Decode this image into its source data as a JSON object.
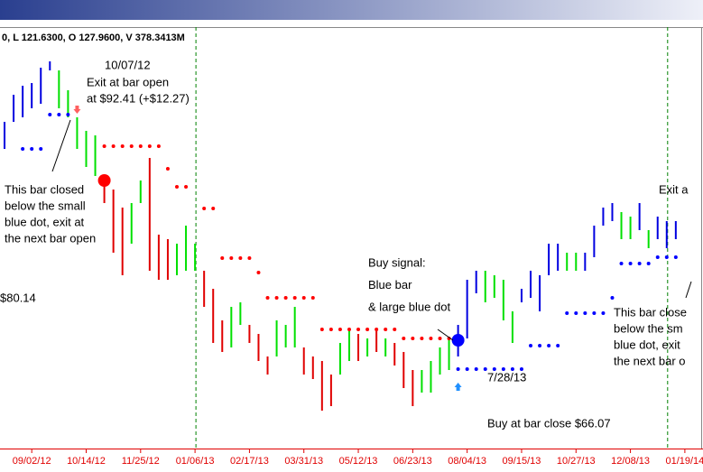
{
  "chart_data": {
    "type": "ohlc",
    "header": "0, L 121.6300, O 127.9600, V 378.3413M",
    "ylim": [
      56.0,
      102.5
    ],
    "xlim": [
      -0.5,
      77
    ],
    "xticks": [
      {
        "value": 3,
        "label": "09/02/12"
      },
      {
        "value": 9,
        "label": "10/14/12"
      },
      {
        "value": 15,
        "label": "11/25/12"
      },
      {
        "value": 21,
        "label": "01/06/13"
      },
      {
        "value": 27,
        "label": "02/17/13"
      },
      {
        "value": 33,
        "label": "03/31/13"
      },
      {
        "value": 39,
        "label": "05/12/13"
      },
      {
        "value": 45,
        "label": "06/23/13"
      },
      {
        "value": 51,
        "label": "08/04/13"
      },
      {
        "value": 57,
        "label": "09/15/13"
      },
      {
        "value": 63,
        "label": "10/27/13"
      },
      {
        "value": 69,
        "label": "12/08/13"
      },
      {
        "value": 75,
        "label": "01/19/14"
      }
    ],
    "year_lines": [
      21.1,
      73.1
    ],
    "bars": {
      "high": [
        92.0,
        95.0,
        96.0,
        96.3,
        98.0,
        98.7,
        97.7,
        95.5,
        92.5,
        91.0,
        90.5,
        85.5,
        84.5,
        82.5,
        83.0,
        85.5,
        88.0,
        79.5,
        79.0,
        78.5,
        80.5,
        78.5,
        75.5,
        73.5,
        70.0,
        71.5,
        72.0,
        69.5,
        68.5,
        66.0,
        70.0,
        69.5,
        71.5,
        67.0,
        66.0,
        65.5,
        64.0,
        67.5,
        69.0,
        68.5,
        68.0,
        69.0,
        68.0,
        67.5,
        66.5,
        64.5,
        64.5,
        65.5,
        67.0,
        68.0,
        69.5,
        74.5,
        75.5,
        75.5,
        75.0,
        74.5,
        71.0,
        73.5,
        75.5,
        75.0,
        78.5,
        78.5,
        77.5,
        77.5,
        77.5,
        80.5,
        82.5,
        83.0,
        82.0,
        81.5,
        83.0,
        80.0,
        81.5,
        81.0,
        81.0
      ],
      "low": [
        89.0,
        92.0,
        92.5,
        93.5,
        94.0,
        97.7,
        93.5,
        92.5,
        89.0,
        87.0,
        86.0,
        83.0,
        77.5,
        75.0,
        78.5,
        83.0,
        75.5,
        74.5,
        74.5,
        75.0,
        75.5,
        75.5,
        71.5,
        67.5,
        66.5,
        67.0,
        69.5,
        67.5,
        65.5,
        64.0,
        66.0,
        67.0,
        67.0,
        64.0,
        63.5,
        60.0,
        60.5,
        64.0,
        65.5,
        65.5,
        66.0,
        66.5,
        66.0,
        65.0,
        62.5,
        60.5,
        62.0,
        62.0,
        64.0,
        64.5,
        66.0,
        68.0,
        73.0,
        72.0,
        72.5,
        70.0,
        67.5,
        72.0,
        72.5,
        71.0,
        75.0,
        75.5,
        75.5,
        75.5,
        75.5,
        77.0,
        80.5,
        81.0,
        79.0,
        79.0,
        80.0,
        78.0,
        79.0,
        78.0,
        79.0
      ],
      "colors": [
        "#0000e0",
        "#0000e0",
        "#0000e0",
        "#0000e0",
        "#0000e0",
        "#0000e0",
        "#00e000",
        "#00e000",
        "#00e000",
        "#00e000",
        "#00e000",
        "#e00000",
        "#e00000",
        "#e00000",
        "#00e000",
        "#00e000",
        "#e00000",
        "#e00000",
        "#e00000",
        "#00e000",
        "#00e000",
        "#00e000",
        "#e00000",
        "#e00000",
        "#e00000",
        "#00e000",
        "#00e000",
        "#e00000",
        "#e00000",
        "#e00000",
        "#00e000",
        "#00e000",
        "#00e000",
        "#e00000",
        "#e00000",
        "#e00000",
        "#e00000",
        "#00e000",
        "#00e000",
        "#e00000",
        "#00e000",
        "#e00000",
        "#00e000",
        "#e00000",
        "#e00000",
        "#e00000",
        "#00e000",
        "#00e000",
        "#00e000",
        "#00e000",
        "#0000e0",
        "#0000e0",
        "#0000e0",
        "#00e000",
        "#00e000",
        "#00e000",
        "#00e000",
        "#0000e0",
        "#0000e0",
        "#0000e0",
        "#0000e0",
        "#0000e0",
        "#00e000",
        "#00e000",
        "#0000e0",
        "#0000e0",
        "#0000e0",
        "#0000e0",
        "#00e000",
        "#00e000",
        "#0000e0",
        "#00e000",
        "#0000e0",
        "#0000e0",
        "#0000e0"
      ]
    },
    "dots": [
      {
        "color": "#ff0000",
        "x": [
          11,
          12,
          13,
          14,
          15,
          16,
          17,
          18,
          19,
          20,
          22,
          23,
          24,
          25,
          26,
          27,
          28,
          29,
          30,
          31,
          32,
          33,
          34,
          35,
          36,
          37,
          38,
          39,
          40,
          41,
          42,
          43,
          44,
          45,
          46,
          47,
          48,
          49
        ],
        "values": [
          89.3,
          89.3,
          89.3,
          89.3,
          89.3,
          89.3,
          89.3,
          86.8,
          84.8,
          84.8,
          82.4,
          82.4,
          76.9,
          76.9,
          76.9,
          76.9,
          75.3,
          72.5,
          72.5,
          72.5,
          72.5,
          72.5,
          72.5,
          69.0,
          69.0,
          69.0,
          69.0,
          69.0,
          69.0,
          69.0,
          69.0,
          69.0,
          68.0,
          68.0,
          68.0,
          68.0,
          68.0,
          68.0
        ]
      },
      {
        "color": "#0000ff",
        "x": [
          2,
          3,
          4,
          5,
          6,
          7,
          50,
          51,
          52,
          53,
          54,
          55,
          56,
          57,
          58,
          59,
          60,
          61,
          62,
          63,
          64,
          65,
          66,
          67,
          68,
          69,
          70,
          71,
          72,
          73,
          74
        ],
        "values": [
          89.0,
          89.0,
          89.0,
          92.8,
          92.8,
          92.8,
          64.6,
          64.6,
          64.6,
          64.6,
          64.6,
          64.6,
          64.6,
          64.6,
          67.2,
          67.2,
          67.2,
          67.2,
          70.8,
          70.8,
          70.8,
          70.8,
          70.8,
          72.5,
          76.3,
          76.3,
          76.3,
          76.3,
          77.0,
          77.0,
          77.0
        ]
      }
    ],
    "big_dots": [
      {
        "x": 11,
        "value": 85.5,
        "color": "#ff0000"
      },
      {
        "x": 50,
        "value": 67.8,
        "color": "#0000ff"
      }
    ],
    "arrows": [
      {
        "x": 8,
        "value": 93.2,
        "color": "#ff6060",
        "shape": "down"
      },
      {
        "x": 50,
        "value": 62.8,
        "color": "#2090ff",
        "shape": "up"
      }
    ],
    "annotations": [
      [
        "10/07/12",
        "Exit at bar open",
        "at $92.41 (+$12.27)"
      ],
      [
        "This bar closed",
        "below the small",
        "blue dot, exit at",
        "the next bar open"
      ],
      [
        "$80.14"
      ],
      [
        "Buy signal:",
        "Blue bar",
        "& large blue dot"
      ],
      [
        "7/28/13"
      ],
      [
        "Buy at bar close $66.07"
      ],
      [
        "Exit a"
      ],
      [
        "This bar close",
        "below the sm",
        "blue dot, exit",
        "the next bar o"
      ]
    ]
  }
}
